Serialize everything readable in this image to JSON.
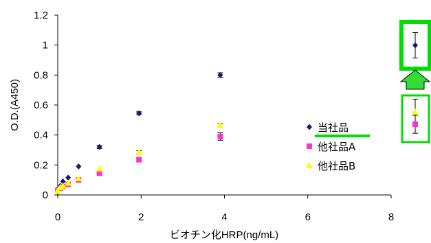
{
  "chart_data": {
    "type": "scatter",
    "xlabel": "ビオチン化HRP(ng/mL)",
    "ylabel": "O.D.(A450)",
    "xlim": [
      0,
      8
    ],
    "ylim": [
      0,
      1.2
    ],
    "x_ticks": [
      "0",
      "2",
      "4",
      "6",
      "8"
    ],
    "y_ticks": [
      "0",
      "0.2",
      "0.4",
      "0.6",
      "0.8",
      "1",
      "1.2"
    ],
    "grid": false,
    "legend_position": "right",
    "series": [
      {
        "name": "当社品",
        "color": "#1a1a6e",
        "marker": "diamond",
        "x": [
          0,
          0.0625,
          0.125,
          0.25,
          0.5,
          1,
          1.95,
          3.9
        ],
        "y": [
          0.04,
          0.06,
          0.09,
          0.115,
          0.19,
          0.32,
          0.545,
          0.8
        ],
        "err": [
          0,
          0,
          0,
          0,
          0,
          0.01,
          0.01,
          0.015
        ]
      },
      {
        "name": "他社品A",
        "color": "#ff33cc",
        "marker": "square",
        "x": [
          0,
          0.0625,
          0.125,
          0.25,
          0.5,
          1,
          1.95,
          3.9
        ],
        "y": [
          0.03,
          0.045,
          0.055,
          0.07,
          0.1,
          0.145,
          0.235,
          0.39
        ],
        "err": [
          0,
          0,
          0,
          0,
          0,
          0.01,
          0.015,
          0.025
        ]
      },
      {
        "name": "他社品B",
        "color": "#ffff00",
        "marker": "triangle",
        "x": [
          0,
          0.0625,
          0.125,
          0.25,
          0.5,
          1,
          1.95,
          3.9
        ],
        "y": [
          0.03,
          0.05,
          0.06,
          0.08,
          0.11,
          0.175,
          0.285,
          0.465
        ],
        "err": [
          0,
          0,
          0,
          0,
          0,
          0,
          0.01,
          0.01
        ]
      }
    ],
    "side_comparison": {
      "highlight_color": "#00dd00",
      "arrow_color": "#33dd33",
      "points": [
        {
          "series": "当社品",
          "y": 1.0,
          "err": 0.085
        },
        {
          "series": "他社品B",
          "y": 0.545,
          "err": 0.085
        },
        {
          "series": "他社品A",
          "y": 0.465,
          "err": 0.06
        }
      ]
    }
  }
}
